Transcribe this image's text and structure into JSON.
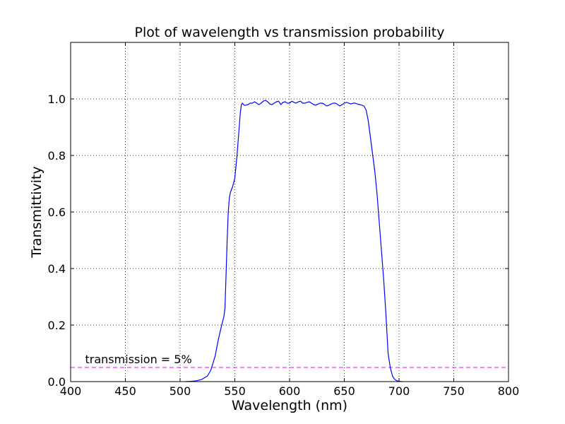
{
  "chart_data": {
    "type": "line",
    "title": "Plot of wavelength vs transmission probability",
    "xlabel": "Wavelength (nm)",
    "ylabel": "Transmittivity",
    "xlim": [
      400,
      800
    ],
    "ylim": [
      0,
      1.2
    ],
    "xticks": [
      400,
      450,
      500,
      550,
      600,
      650,
      700,
      750,
      800
    ],
    "xtick_labels": [
      "400",
      "450",
      "500",
      "550",
      "600",
      "650",
      "700",
      "750",
      "800"
    ],
    "yticks": [
      0.0,
      0.2,
      0.4,
      0.6,
      0.8,
      1.0
    ],
    "ytick_labels": [
      "0.0",
      "0.2",
      "0.4",
      "0.6",
      "0.8",
      "1.0"
    ],
    "grid": true,
    "series": [
      {
        "color": "#0000ff",
        "style": "solid",
        "x": [
          505,
          510,
          515,
          520,
          525,
          528,
          532,
          535,
          538,
          540,
          541,
          542,
          543,
          544,
          545,
          546,
          548,
          550,
          552,
          554,
          555,
          556,
          557,
          558,
          559,
          560,
          562,
          564,
          566,
          568,
          570,
          572,
          574,
          576,
          578,
          580,
          582,
          584,
          586,
          588,
          590,
          592,
          594,
          596,
          598,
          600,
          602,
          604,
          606,
          608,
          610,
          612,
          614,
          616,
          618,
          620,
          622,
          624,
          626,
          628,
          630,
          632,
          634,
          636,
          638,
          640,
          642,
          644,
          646,
          648,
          650,
          652,
          654,
          656,
          658,
          660,
          662,
          664,
          666,
          668,
          670,
          672,
          674,
          676,
          678,
          680,
          682,
          684,
          686,
          688,
          690,
          692,
          694,
          696,
          698,
          700,
          703
        ],
        "y": [
          0.0,
          0.001,
          0.003,
          0.008,
          0.02,
          0.04,
          0.09,
          0.15,
          0.2,
          0.23,
          0.26,
          0.38,
          0.5,
          0.6,
          0.65,
          0.67,
          0.69,
          0.72,
          0.8,
          0.9,
          0.95,
          0.98,
          0.985,
          0.98,
          0.977,
          0.978,
          0.98,
          0.985,
          0.985,
          0.99,
          0.985,
          0.98,
          0.985,
          0.992,
          0.995,
          0.99,
          0.982,
          0.98,
          0.985,
          0.99,
          0.992,
          0.98,
          0.988,
          0.99,
          0.985,
          0.985,
          0.992,
          0.988,
          0.985,
          0.99,
          0.992,
          0.985,
          0.985,
          0.988,
          0.99,
          0.985,
          0.98,
          0.978,
          0.982,
          0.985,
          0.985,
          0.98,
          0.975,
          0.978,
          0.982,
          0.985,
          0.985,
          0.98,
          0.975,
          0.98,
          0.985,
          0.988,
          0.985,
          0.982,
          0.985,
          0.985,
          0.982,
          0.98,
          0.978,
          0.975,
          0.96,
          0.92,
          0.86,
          0.8,
          0.74,
          0.66,
          0.56,
          0.46,
          0.36,
          0.24,
          0.1,
          0.05,
          0.02,
          0.008,
          0.003,
          0.001,
          0.0
        ]
      }
    ],
    "hlines": [
      {
        "y": 0.05,
        "color": "#ff00ff",
        "style": "dashed"
      }
    ],
    "annotations": [
      {
        "text": "transmission = 5%",
        "x": 410,
        "y": 0.06
      }
    ]
  }
}
